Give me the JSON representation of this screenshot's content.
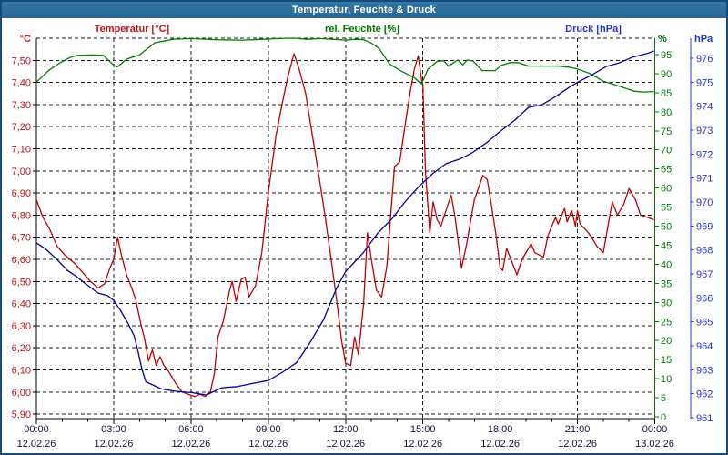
{
  "window": {
    "title": "Temperatur, Feuchte & Druck"
  },
  "chart_data": {
    "type": "line",
    "title": "Temperatur, Feuchte & Druck",
    "grid": true,
    "x_axis": {
      "span_hours": 24,
      "major_tick_hours": 3,
      "minor_tick_hours": 1,
      "time_labels": [
        "00:00",
        "03:00",
        "06:00",
        "09:00",
        "12:00",
        "15:00",
        "18:00",
        "21:00",
        "00:00"
      ],
      "date_labels": [
        "12.02.26",
        "12.02.26",
        "12.02.26",
        "12.02.26",
        "12.02.26",
        "12.02.26",
        "12.02.26",
        "12.02.26",
        "13.02.26"
      ]
    },
    "axes": {
      "temperature": {
        "title": "Temperatur [°C]",
        "unit": "°C",
        "side": "left",
        "color": "#c41414",
        "min": 5.9,
        "max": 7.6,
        "tick_step": 0.1,
        "tick_labels": [
          "5,90",
          "6,00",
          "6,10",
          "6,20",
          "6,30",
          "6,40",
          "6,50",
          "6,60",
          "6,70",
          "6,80",
          "6,90",
          "7,00",
          "7,10",
          "7,20",
          "7,30",
          "7,40",
          "7,50"
        ]
      },
      "humidity": {
        "title": "rel. Feuchte [%]",
        "unit": "%",
        "side": "right",
        "color": "#007a00",
        "min": 0,
        "max": 99.3,
        "tick_step": 5,
        "tick_labels": [
          "0",
          "5",
          "10",
          "15",
          "20",
          "25",
          "30",
          "35",
          "40",
          "45",
          "50",
          "55",
          "60",
          "65",
          "70",
          "75",
          "80",
          "85",
          "90",
          "95"
        ]
      },
      "pressure": {
        "title": "Druck [hPa]",
        "unit": "hPa",
        "side": "right-outer",
        "color": "#2038c8",
        "min": 961,
        "max": 976,
        "tick_step": 1,
        "tick_labels": [
          "961",
          "962",
          "963",
          "964",
          "965",
          "966",
          "967",
          "968",
          "969",
          "970",
          "971",
          "972",
          "973",
          "974",
          "975",
          "976"
        ]
      }
    },
    "series": [
      {
        "name": "Temperatur",
        "unit": "°C",
        "color": "#c00000",
        "axis": "temperature",
        "points": [
          [
            0,
            6.87
          ],
          [
            0.25,
            6.79
          ],
          [
            0.5,
            6.74
          ],
          [
            0.8,
            6.66
          ],
          [
            1.1,
            6.62
          ],
          [
            1.5,
            6.58
          ],
          [
            1.8,
            6.54
          ],
          [
            2.1,
            6.5
          ],
          [
            2.4,
            6.47
          ],
          [
            2.65,
            6.49
          ],
          [
            2.85,
            6.56
          ],
          [
            3.0,
            6.6
          ],
          [
            3.15,
            6.7
          ],
          [
            3.3,
            6.62
          ],
          [
            3.5,
            6.53
          ],
          [
            3.7,
            6.47
          ],
          [
            3.85,
            6.42
          ],
          [
            4.05,
            6.31
          ],
          [
            4.2,
            6.24
          ],
          [
            4.35,
            6.14
          ],
          [
            4.5,
            6.19
          ],
          [
            4.65,
            6.12
          ],
          [
            4.8,
            6.16
          ],
          [
            4.95,
            6.12
          ],
          [
            5.15,
            6.09
          ],
          [
            5.4,
            6.04
          ],
          [
            5.65,
            6.0
          ],
          [
            5.9,
            5.99
          ],
          [
            6.15,
            5.98
          ],
          [
            6.35,
            5.99
          ],
          [
            6.55,
            5.98
          ],
          [
            6.75,
            6.0
          ],
          [
            6.9,
            6.08
          ],
          [
            7.05,
            6.25
          ],
          [
            7.25,
            6.32
          ],
          [
            7.5,
            6.46
          ],
          [
            7.6,
            6.5
          ],
          [
            7.75,
            6.41
          ],
          [
            7.95,
            6.51
          ],
          [
            8.1,
            6.52
          ],
          [
            8.25,
            6.43
          ],
          [
            8.5,
            6.48
          ],
          [
            8.75,
            6.63
          ],
          [
            9.0,
            6.9
          ],
          [
            9.3,
            7.16
          ],
          [
            9.55,
            7.31
          ],
          [
            9.75,
            7.42
          ],
          [
            10.0,
            7.53
          ],
          [
            10.2,
            7.46
          ],
          [
            10.45,
            7.35
          ],
          [
            10.7,
            7.17
          ],
          [
            10.95,
            6.99
          ],
          [
            11.2,
            6.8
          ],
          [
            11.45,
            6.59
          ],
          [
            11.65,
            6.42
          ],
          [
            11.85,
            6.23
          ],
          [
            12.0,
            6.13
          ],
          [
            12.2,
            6.12
          ],
          [
            12.35,
            6.25
          ],
          [
            12.5,
            6.17
          ],
          [
            12.7,
            6.4
          ],
          [
            12.85,
            6.72
          ],
          [
            13.0,
            6.6
          ],
          [
            13.2,
            6.46
          ],
          [
            13.4,
            6.43
          ],
          [
            13.6,
            6.57
          ],
          [
            13.9,
            7.02
          ],
          [
            14.1,
            7.04
          ],
          [
            14.3,
            7.2
          ],
          [
            14.5,
            7.35
          ],
          [
            14.67,
            7.46
          ],
          [
            14.82,
            7.52
          ],
          [
            14.95,
            7.41
          ],
          [
            15.0,
            7.39
          ],
          [
            15.1,
            7.0
          ],
          [
            15.27,
            6.72
          ],
          [
            15.4,
            6.86
          ],
          [
            15.55,
            6.78
          ],
          [
            15.7,
            6.75
          ],
          [
            15.98,
            6.85
          ],
          [
            16.1,
            6.89
          ],
          [
            16.25,
            6.79
          ],
          [
            16.5,
            6.56
          ],
          [
            16.7,
            6.67
          ],
          [
            17.0,
            6.87
          ],
          [
            17.33,
            6.98
          ],
          [
            17.5,
            6.96
          ],
          [
            17.68,
            6.83
          ],
          [
            17.85,
            6.7
          ],
          [
            18.0,
            6.56
          ],
          [
            18.1,
            6.55
          ],
          [
            18.25,
            6.65
          ],
          [
            18.45,
            6.59
          ],
          [
            18.65,
            6.53
          ],
          [
            18.85,
            6.6
          ],
          [
            19.2,
            6.67
          ],
          [
            19.35,
            6.63
          ],
          [
            19.68,
            6.61
          ],
          [
            19.86,
            6.71
          ],
          [
            20.15,
            6.79
          ],
          [
            20.25,
            6.76
          ],
          [
            20.5,
            6.83
          ],
          [
            20.6,
            6.77
          ],
          [
            20.78,
            6.82
          ],
          [
            20.92,
            6.75
          ],
          [
            21.0,
            6.82
          ],
          [
            21.1,
            6.76
          ],
          [
            21.35,
            6.73
          ],
          [
            21.55,
            6.7
          ],
          [
            21.75,
            6.66
          ],
          [
            22.0,
            6.63
          ],
          [
            22.35,
            6.86
          ],
          [
            22.55,
            6.8
          ],
          [
            22.8,
            6.85
          ],
          [
            23.0,
            6.92
          ],
          [
            23.25,
            6.87
          ],
          [
            23.45,
            6.8
          ],
          [
            23.7,
            6.79
          ],
          [
            23.95,
            6.78
          ]
        ]
      },
      {
        "name": "rel. Feuchte",
        "unit": "%",
        "color": "#008000",
        "axis": "humidity",
        "points": [
          [
            0,
            87.8
          ],
          [
            0.5,
            91.0
          ],
          [
            0.95,
            93.0
          ],
          [
            1.3,
            94.2
          ],
          [
            1.6,
            94.8
          ],
          [
            2.2,
            94.9
          ],
          [
            2.6,
            94.8
          ],
          [
            3.0,
            92.2
          ],
          [
            3.15,
            91.8
          ],
          [
            3.5,
            93.8
          ],
          [
            4.0,
            94.9
          ],
          [
            4.24,
            96.2
          ],
          [
            4.6,
            98.1
          ],
          [
            5.3,
            99.0
          ],
          [
            6.0,
            99.2
          ],
          [
            7.0,
            98.9
          ],
          [
            8.0,
            98.8
          ],
          [
            8.8,
            99.0
          ],
          [
            9.4,
            99.2
          ],
          [
            10.0,
            99.3
          ],
          [
            10.5,
            99.0
          ],
          [
            11.0,
            99.2
          ],
          [
            11.5,
            99.0
          ],
          [
            12.0,
            98.8
          ],
          [
            12.4,
            99.0
          ],
          [
            12.7,
            98.9
          ],
          [
            13.0,
            98.0
          ],
          [
            13.3,
            96.6
          ],
          [
            13.7,
            92.6
          ],
          [
            14.1,
            90.9
          ],
          [
            14.65,
            89.0
          ],
          [
            14.95,
            87.3
          ],
          [
            15.2,
            91.2
          ],
          [
            15.55,
            93.2
          ],
          [
            15.8,
            93.4
          ],
          [
            16.0,
            92.0
          ],
          [
            16.35,
            93.6
          ],
          [
            16.55,
            92.3
          ],
          [
            16.72,
            93.6
          ],
          [
            16.95,
            93.3
          ],
          [
            17.3,
            90.8
          ],
          [
            17.8,
            90.8
          ],
          [
            18.05,
            92.2
          ],
          [
            18.4,
            92.9
          ],
          [
            18.7,
            92.9
          ],
          [
            19.1,
            92.0
          ],
          [
            19.7,
            92.0
          ],
          [
            20.25,
            92.0
          ],
          [
            20.75,
            91.6
          ],
          [
            21.0,
            91.2
          ],
          [
            21.5,
            90.0
          ],
          [
            22.0,
            88.0
          ],
          [
            22.35,
            87.3
          ],
          [
            22.85,
            86.2
          ],
          [
            23.2,
            85.4
          ],
          [
            23.55,
            85.2
          ],
          [
            23.95,
            85.3
          ]
        ]
      },
      {
        "name": "Druck",
        "unit": "hPa",
        "color": "#0000a8",
        "axis": "pressure",
        "points": [
          [
            0,
            968.3
          ],
          [
            0.35,
            968.05
          ],
          [
            0.8,
            967.6
          ],
          [
            1.2,
            967.15
          ],
          [
            1.55,
            966.9
          ],
          [
            1.9,
            966.6
          ],
          [
            2.4,
            966.2
          ],
          [
            2.75,
            966.1
          ],
          [
            3.0,
            965.9
          ],
          [
            3.25,
            965.5
          ],
          [
            3.55,
            964.95
          ],
          [
            3.8,
            964.4
          ],
          [
            3.95,
            963.75
          ],
          [
            4.1,
            963.0
          ],
          [
            4.25,
            962.5
          ],
          [
            4.85,
            962.2
          ],
          [
            5.4,
            962.1
          ],
          [
            6.0,
            962.05
          ],
          [
            6.6,
            961.95
          ],
          [
            7.2,
            962.25
          ],
          [
            7.8,
            962.3
          ],
          [
            8.5,
            962.45
          ],
          [
            9.0,
            962.55
          ],
          [
            9.55,
            962.9
          ],
          [
            10.1,
            963.3
          ],
          [
            10.6,
            964.1
          ],
          [
            11.15,
            965.1
          ],
          [
            11.65,
            966.4
          ],
          [
            12.0,
            967.1
          ],
          [
            12.7,
            967.9
          ],
          [
            13.25,
            968.7
          ],
          [
            13.8,
            969.3
          ],
          [
            14.3,
            970.0
          ],
          [
            14.85,
            970.65
          ],
          [
            15.4,
            971.2
          ],
          [
            15.9,
            971.6
          ],
          [
            16.45,
            971.8
          ],
          [
            16.9,
            972.05
          ],
          [
            17.5,
            972.5
          ],
          [
            18.0,
            972.95
          ],
          [
            18.55,
            973.4
          ],
          [
            19.1,
            973.95
          ],
          [
            19.6,
            974.05
          ],
          [
            20.15,
            974.4
          ],
          [
            20.7,
            974.8
          ],
          [
            21.0,
            975.0
          ],
          [
            21.55,
            975.3
          ],
          [
            22.1,
            975.65
          ],
          [
            22.6,
            975.8
          ],
          [
            23.15,
            976.05
          ],
          [
            23.7,
            976.2
          ],
          [
            23.95,
            976.3
          ]
        ]
      }
    ]
  }
}
